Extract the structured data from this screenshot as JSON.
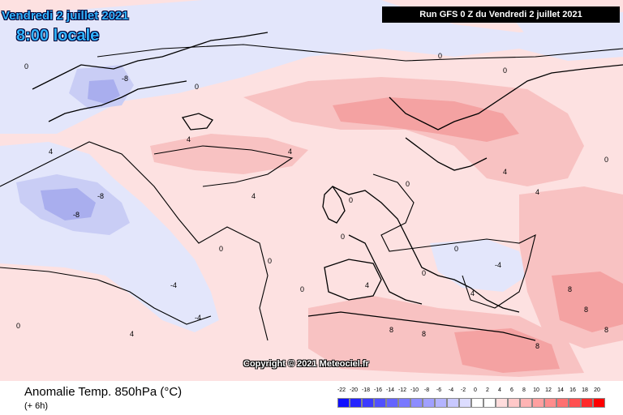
{
  "header": {
    "date_label": "Vendredi 2 juillet 2021",
    "time_label": "8:00 locale",
    "run_label": "Run GFS 0 Z du Vendredi 2 juillet 2021"
  },
  "map": {
    "copyright": "Copyright © 2021 Meteociel.fr",
    "contour_labels": [
      "0",
      "4",
      "8",
      "-4",
      "-8"
    ],
    "colors": {
      "warm_light": "#fde1e1",
      "warm_mid": "#f8c2c2",
      "warm_strong": "#f4a2a2",
      "cool_light": "#e3e6fb",
      "cool_mid": "#c9cdf5",
      "cool_strong": "#a9aeee",
      "coast": "#000000"
    }
  },
  "legend": {
    "title": "Anomalie Temp. 850hPa (°C)",
    "subtitle": "(+ 6h)",
    "labels": [
      "-22",
      "-20",
      "-18",
      "-16",
      "-14",
      "-12",
      "-10",
      "-8",
      "-6",
      "-4",
      "-2",
      "0",
      "2",
      "4",
      "6",
      "8",
      "10",
      "12",
      "14",
      "16",
      "18",
      "20"
    ],
    "colors": [
      "#1010ff",
      "#2424ff",
      "#3a3aff",
      "#5050ff",
      "#6464ff",
      "#7878ff",
      "#8c8cff",
      "#a0a0ff",
      "#b4b4ff",
      "#c8c8ff",
      "#dcdcff",
      "#ffffff",
      "#ffffff",
      "#ffdcdc",
      "#ffc8c8",
      "#ffb4b4",
      "#ffa0a0",
      "#ff8c8c",
      "#ff7070",
      "#ff5050",
      "#ff2a2a",
      "#ff0000"
    ]
  }
}
